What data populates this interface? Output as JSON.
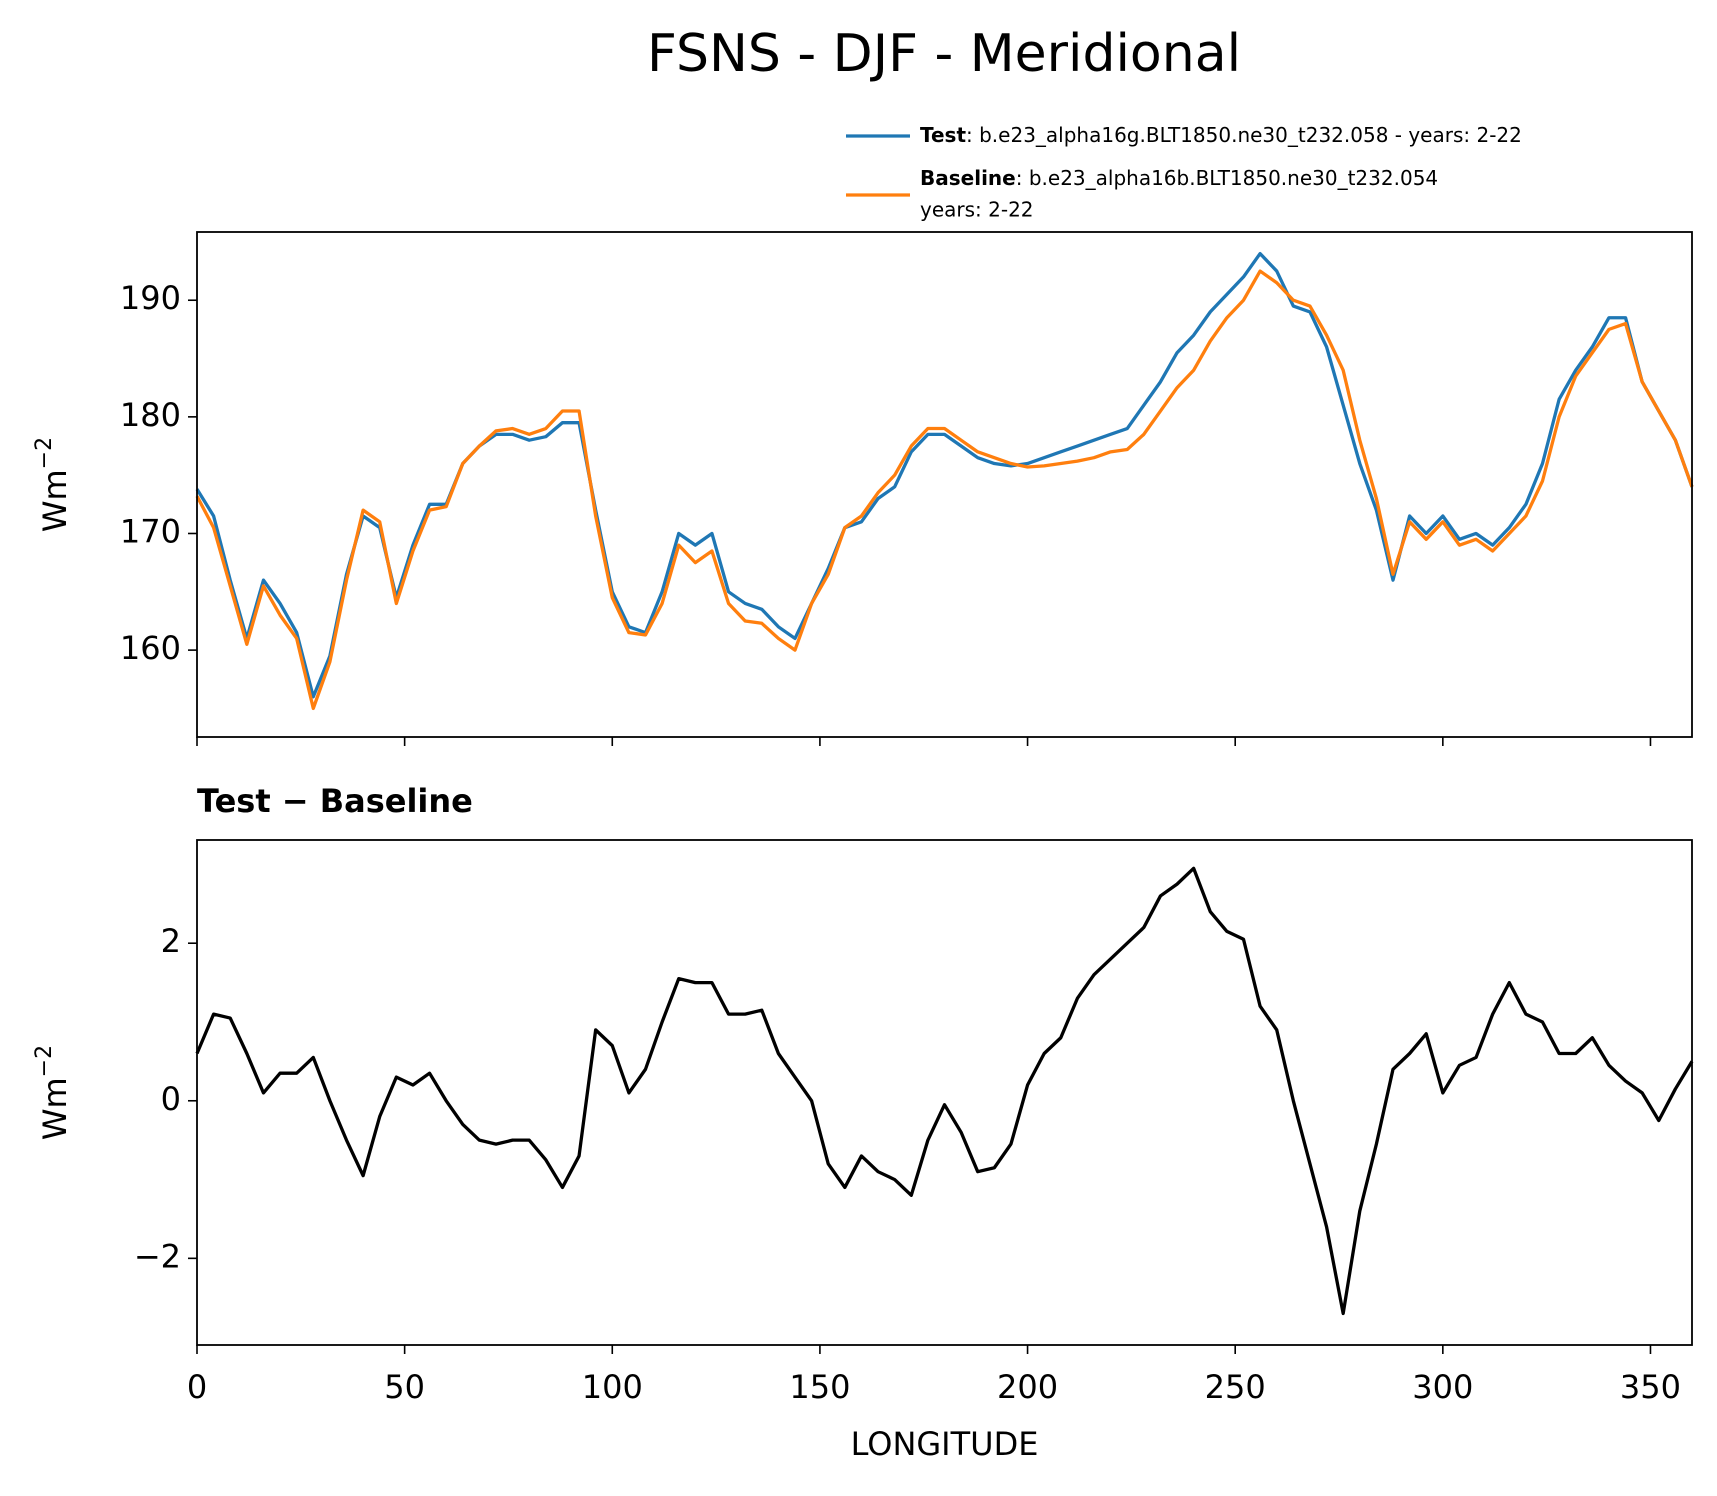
{
  "chart_data": [
    {
      "type": "line",
      "title": "FSNS - DJF - Meridional",
      "ylabel": {
        "base": "Wm",
        "sup": "−2"
      },
      "x": [
        0,
        4,
        8,
        12,
        16,
        20,
        24,
        28,
        32,
        36,
        40,
        44,
        48,
        52,
        56,
        60,
        64,
        68,
        72,
        76,
        80,
        84,
        88,
        92,
        96,
        100,
        104,
        108,
        112,
        116,
        120,
        124,
        128,
        132,
        136,
        140,
        144,
        148,
        152,
        156,
        160,
        164,
        168,
        172,
        176,
        180,
        184,
        188,
        192,
        196,
        200,
        204,
        208,
        212,
        216,
        220,
        224,
        228,
        232,
        236,
        240,
        244,
        248,
        252,
        256,
        260,
        264,
        268,
        272,
        276,
        280,
        284,
        288,
        292,
        296,
        300,
        304,
        308,
        312,
        316,
        320,
        324,
        328,
        332,
        336,
        340,
        344,
        348,
        352,
        356,
        360
      ],
      "series": [
        {
          "name": "Test",
          "desc": [
            ": b.e23_alpha16g.BLT1850.ne30_t232.058 - years: 2-22"
          ],
          "color": "#1f77b4",
          "values": [
            173.8,
            171.5,
            166,
            161,
            166,
            164,
            161.5,
            156,
            159.5,
            166.5,
            171.5,
            170.5,
            164.5,
            169,
            172.5,
            172.5,
            176,
            177.5,
            178.5,
            178.5,
            178,
            178.3,
            179.5,
            179.5,
            172,
            165,
            162,
            161.5,
            165,
            170,
            169,
            170,
            165,
            164,
            163.5,
            162,
            161,
            164,
            167,
            170.5,
            171,
            173,
            174,
            177,
            178.5,
            178.5,
            177.5,
            176.5,
            176,
            175.8,
            176,
            176.5,
            177,
            177.5,
            178,
            178.5,
            179,
            181,
            183,
            185.5,
            187,
            189,
            190.5,
            192,
            194,
            192.5,
            189.5,
            189,
            186,
            181,
            176,
            172,
            166,
            171.5,
            170,
            171.5,
            169.5,
            170,
            169,
            170.5,
            172.5,
            176,
            181.5,
            184,
            186,
            188.5,
            188.5,
            183,
            180.5,
            178,
            174
          ]
        },
        {
          "name": "Baseline",
          "desc": [
            ": b.e23_alpha16b.BLT1850.ne30_t232.054",
            "years: 2-22"
          ],
          "color": "#ff7f0e",
          "values": [
            173.2,
            170.5,
            165.5,
            160.5,
            165.5,
            163,
            161,
            155,
            159,
            166,
            172,
            171,
            164,
            168.5,
            172,
            172.3,
            176,
            177.5,
            178.8,
            179,
            178.5,
            179,
            180.5,
            180.5,
            171.5,
            164.5,
            161.5,
            161.3,
            164,
            169,
            167.5,
            168.5,
            164,
            162.5,
            162.3,
            161,
            160,
            164,
            166.5,
            170.5,
            171.5,
            173.5,
            175,
            177.5,
            179,
            179,
            178,
            177,
            176.5,
            176,
            175.7,
            175.8,
            176,
            176.2,
            176.5,
            177,
            177.2,
            178.5,
            180.5,
            182.5,
            184,
            186.5,
            188.5,
            190,
            192.5,
            191.5,
            190,
            189.5,
            187,
            184,
            178,
            173,
            166.5,
            171,
            169.5,
            171,
            169,
            169.5,
            168.5,
            170,
            171.5,
            174.5,
            180,
            183.5,
            185.5,
            187.5,
            188,
            183,
            180.5,
            178,
            174
          ]
        }
      ],
      "xlim": [
        0,
        360
      ],
      "xticks": [
        0,
        50,
        100,
        150,
        200,
        250,
        300,
        350
      ],
      "ylim": [
        152.55,
        195.85
      ],
      "yticks": [
        160,
        170,
        180,
        190
      ]
    },
    {
      "type": "line",
      "title": "Test − Baseline",
      "xlabel": "LONGITUDE",
      "ylabel": {
        "base": "Wm",
        "sup": "−2"
      },
      "x": [
        0,
        4,
        8,
        12,
        16,
        20,
        24,
        28,
        32,
        36,
        40,
        44,
        48,
        52,
        56,
        60,
        64,
        68,
        72,
        76,
        80,
        84,
        88,
        92,
        96,
        100,
        104,
        108,
        112,
        116,
        120,
        124,
        128,
        132,
        136,
        140,
        144,
        148,
        152,
        156,
        160,
        164,
        168,
        172,
        176,
        180,
        184,
        188,
        192,
        196,
        200,
        204,
        208,
        212,
        216,
        220,
        224,
        228,
        232,
        236,
        240,
        244,
        248,
        252,
        256,
        260,
        264,
        268,
        272,
        276,
        280,
        284,
        288,
        292,
        296,
        300,
        304,
        308,
        312,
        316,
        320,
        324,
        328,
        332,
        336,
        340,
        344,
        348,
        352,
        356,
        360
      ],
      "color": "#000000",
      "values": [
        0.6,
        1.1,
        1.05,
        0.6,
        0.1,
        0.35,
        0.35,
        0.55,
        0.0,
        -0.5,
        -0.95,
        -0.2,
        0.3,
        0.2,
        0.35,
        0.0,
        -0.3,
        -0.5,
        -0.55,
        -0.5,
        -0.5,
        -0.75,
        -1.1,
        -0.7,
        0.9,
        0.7,
        0.1,
        0.4,
        1.0,
        1.55,
        1.5,
        1.5,
        1.1,
        1.1,
        1.15,
        0.6,
        0.3,
        0.0,
        -0.8,
        -1.1,
        -0.7,
        -0.9,
        -1.0,
        -1.2,
        -0.5,
        -0.05,
        -0.4,
        -0.9,
        -0.85,
        -0.55,
        0.2,
        0.6,
        0.8,
        1.3,
        1.6,
        1.8,
        2.0,
        2.2,
        2.6,
        2.75,
        2.95,
        2.4,
        2.15,
        2.05,
        1.2,
        0.9,
        0.0,
        -0.8,
        -1.6,
        -2.7,
        -1.4,
        -0.55,
        0.4,
        0.6,
        0.85,
        0.1,
        0.45,
        0.55,
        1.1,
        1.5,
        1.1,
        1.0,
        0.6,
        0.6,
        0.8,
        0.45,
        0.25,
        0.1,
        -0.25,
        0.15,
        0.5
      ],
      "xlim": [
        0,
        360
      ],
      "xticks": [
        0,
        50,
        100,
        150,
        200,
        250,
        300,
        350
      ],
      "ylim": [
        -3.1,
        3.31
      ],
      "yticks": [
        {
          "value": -2,
          "label": "−2"
        },
        0,
        2
      ]
    }
  ]
}
